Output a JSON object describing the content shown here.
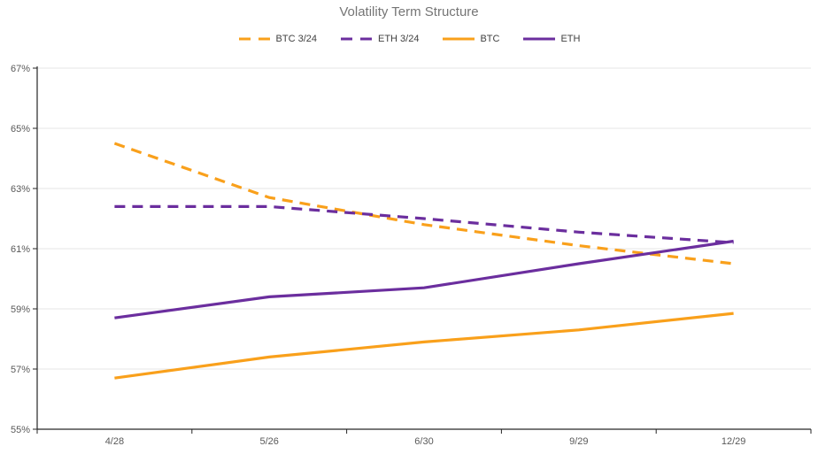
{
  "title": "Volatility Term Structure",
  "colors": {
    "orange": "#F9A01B",
    "purple": "#6B2E9E",
    "axis": "#262626",
    "grid": "#E6E6E6",
    "tick_label": "#595959",
    "title_text": "#757575",
    "legend_text": "#404040",
    "background": "#FFFFFF"
  },
  "chart_data": {
    "type": "line",
    "title": "Volatility Term Structure",
    "categories": [
      "4/28",
      "5/26",
      "6/30",
      "9/29",
      "12/29"
    ],
    "series": [
      {
        "name": "BTC 3/24",
        "color": "#F9A01B",
        "style": "dashed",
        "values": [
          64.5,
          62.7,
          61.8,
          61.1,
          60.5
        ]
      },
      {
        "name": "ETH 3/24",
        "color": "#6B2E9E",
        "style": "dashed",
        "values": [
          62.4,
          62.4,
          62.0,
          61.55,
          61.2
        ]
      },
      {
        "name": "BTC",
        "color": "#F9A01B",
        "style": "solid",
        "values": [
          56.7,
          57.4,
          57.9,
          58.3,
          58.85
        ]
      },
      {
        "name": "ETH",
        "color": "#6B2E9E",
        "style": "solid",
        "values": [
          58.7,
          59.4,
          59.7,
          60.5,
          61.25
        ]
      }
    ],
    "ylabel": "",
    "xlabel": "",
    "ylim": [
      55,
      67
    ],
    "yticks": [
      {
        "value": 55,
        "label": "55%"
      },
      {
        "value": 57,
        "label": "57%"
      },
      {
        "value": 59,
        "label": "59%"
      },
      {
        "value": 61,
        "label": "61%"
      },
      {
        "value": 63,
        "label": "63%"
      },
      {
        "value": 65,
        "label": "65%"
      },
      {
        "value": 67,
        "label": "67%"
      }
    ],
    "grid": true,
    "legend_position": "top"
  }
}
